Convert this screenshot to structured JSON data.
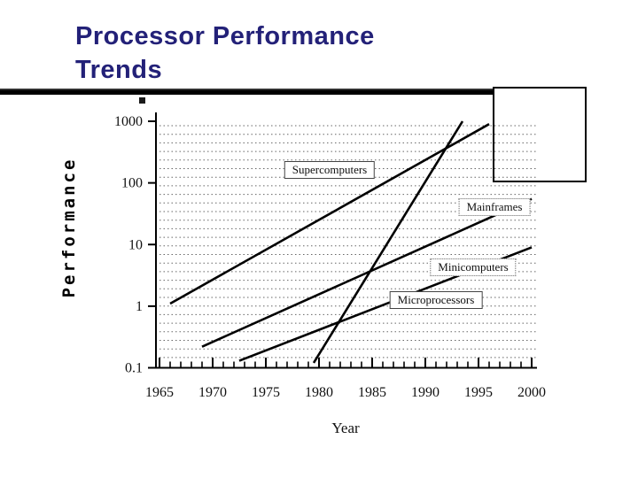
{
  "slide": {
    "title": [
      "Processor Performance",
      "Trends"
    ],
    "title_color": "#232178"
  },
  "chart_data": {
    "type": "line",
    "title": "Processor Performance Trends",
    "xlabel": "Year",
    "ylabel": "Performance",
    "grid": "dotted-horizontal",
    "legend_position": "inline-boxed-labels",
    "x_axis": {
      "min": 1965,
      "max": 2000,
      "tick_step": 5,
      "minor_step": 1,
      "tick_labels": [
        "1965",
        "1970",
        "1975",
        "1980",
        "1985",
        "1990",
        "1995",
        "2000"
      ]
    },
    "y_axis": {
      "scale": "log",
      "min": 0.1,
      "max": 1000,
      "tick_values": [
        1000,
        100,
        10,
        1,
        0.1
      ],
      "tick_labels": [
        "1000",
        "100",
        "10",
        "1",
        "0.1"
      ]
    },
    "series": [
      {
        "name": "Supercomputers",
        "points": [
          [
            1966,
            1.1
          ],
          [
            1996,
            900
          ]
        ],
        "label_at": [
          1981,
          160
        ],
        "label_border": "solid"
      },
      {
        "name": "Mainframes",
        "points": [
          [
            1969,
            0.22
          ],
          [
            2000,
            55
          ]
        ],
        "label_at": [
          1996.5,
          40
        ],
        "label_border": "dotted"
      },
      {
        "name": "Minicomputers",
        "points": [
          [
            1972.5,
            0.13
          ],
          [
            2000,
            9
          ]
        ],
        "label_at": [
          1994.5,
          4.3
        ],
        "label_border": "dotted"
      },
      {
        "name": "Microprocessors",
        "points": [
          [
            1979.5,
            0.12
          ],
          [
            1993.5,
            1000
          ]
        ],
        "label_at": [
          1991,
          1.25
        ],
        "label_border": "solid"
      }
    ]
  }
}
